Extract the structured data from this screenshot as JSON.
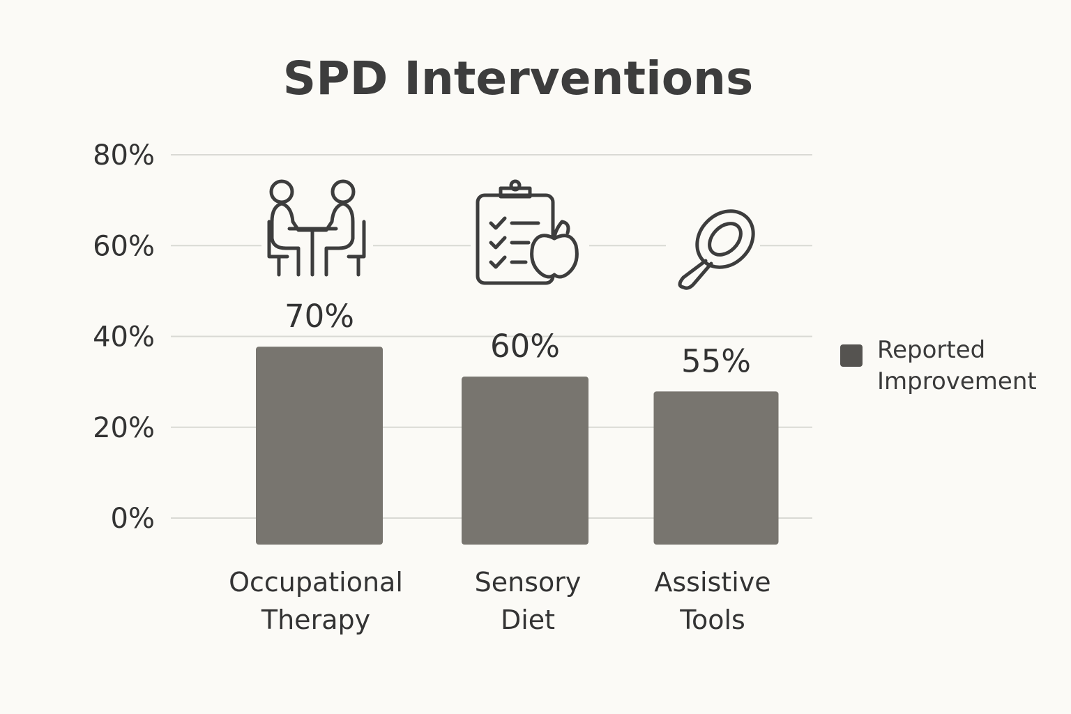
{
  "chart_data": {
    "type": "bar",
    "title": "SPD Interventions",
    "categories": [
      [
        "Occupational",
        "Therapy"
      ],
      [
        "Sensory",
        "Diet"
      ],
      [
        "Assistive",
        "Tools"
      ]
    ],
    "values": [
      70,
      60,
      55
    ],
    "value_labels": [
      "70%",
      "60%",
      "55%"
    ],
    "icons": [
      "therapy-session-icon",
      "diet-checklist-apple-icon",
      "magnifying-spoon-icon"
    ],
    "y_ticks": [
      "0%",
      "20%",
      "40%",
      "60%",
      "80%"
    ],
    "ylim": [
      0,
      80
    ],
    "grid": true,
    "legend": {
      "label": [
        "Reported",
        "Improvement"
      ],
      "color": "#555350",
      "placement": "right"
    },
    "bar_color": "#78756f"
  }
}
